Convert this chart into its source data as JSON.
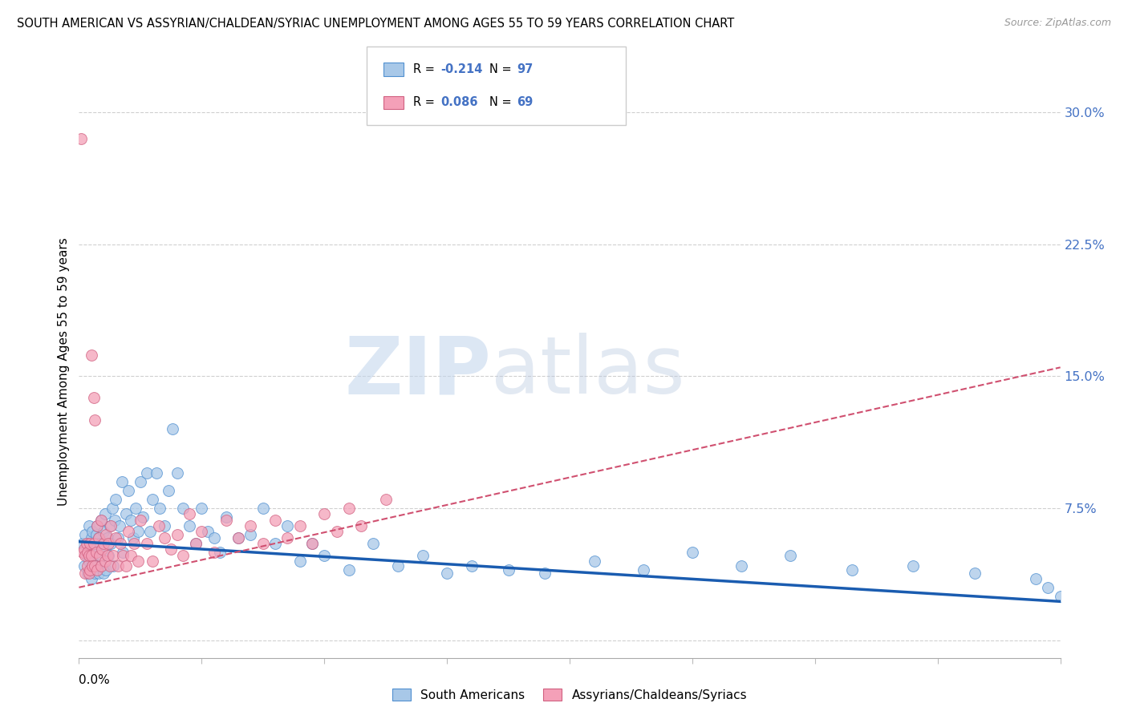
{
  "title": "SOUTH AMERICAN VS ASSYRIAN/CHALDEAN/SYRIAC UNEMPLOYMENT AMONG AGES 55 TO 59 YEARS CORRELATION CHART",
  "source": "Source: ZipAtlas.com",
  "ylabel": "Unemployment Among Ages 55 to 59 years",
  "yticks": [
    0.0,
    0.075,
    0.15,
    0.225,
    0.3
  ],
  "ytick_labels": [
    "",
    "7.5%",
    "15.0%",
    "22.5%",
    "30.0%"
  ],
  "xlim": [
    0.0,
    0.8
  ],
  "ylim": [
    -0.01,
    0.315
  ],
  "blue_R": -0.214,
  "blue_N": 97,
  "pink_R": 0.086,
  "pink_N": 69,
  "blue_color": "#a8c8e8",
  "pink_color": "#f4a0b8",
  "blue_edge_color": "#5090d0",
  "pink_edge_color": "#d06080",
  "blue_line_color": "#1a5cb0",
  "pink_line_color": "#d05070",
  "legend_label_blue": "South Americans",
  "legend_label_pink": "Assyrians/Chaldeans/Syriacs",
  "watermark_zip": "ZIP",
  "watermark_atlas": "atlas",
  "blue_line_x0": 0.0,
  "blue_line_y0": 0.056,
  "blue_line_x1": 0.8,
  "blue_line_y1": 0.022,
  "pink_line_x0": 0.0,
  "pink_line_y0": 0.03,
  "pink_line_x1": 0.8,
  "pink_line_y1": 0.155,
  "blue_scatter_x": [
    0.003,
    0.004,
    0.005,
    0.006,
    0.007,
    0.007,
    0.008,
    0.008,
    0.009,
    0.009,
    0.01,
    0.01,
    0.01,
    0.011,
    0.011,
    0.012,
    0.012,
    0.013,
    0.013,
    0.014,
    0.015,
    0.015,
    0.016,
    0.016,
    0.017,
    0.018,
    0.018,
    0.019,
    0.02,
    0.02,
    0.021,
    0.022,
    0.022,
    0.023,
    0.024,
    0.025,
    0.026,
    0.027,
    0.028,
    0.029,
    0.03,
    0.032,
    0.033,
    0.035,
    0.036,
    0.038,
    0.04,
    0.042,
    0.044,
    0.046,
    0.048,
    0.05,
    0.052,
    0.055,
    0.058,
    0.06,
    0.063,
    0.066,
    0.07,
    0.073,
    0.076,
    0.08,
    0.085,
    0.09,
    0.095,
    0.1,
    0.105,
    0.11,
    0.115,
    0.12,
    0.13,
    0.14,
    0.15,
    0.16,
    0.17,
    0.18,
    0.19,
    0.2,
    0.22,
    0.24,
    0.26,
    0.28,
    0.3,
    0.32,
    0.35,
    0.38,
    0.42,
    0.46,
    0.5,
    0.54,
    0.58,
    0.63,
    0.68,
    0.73,
    0.78,
    0.79,
    0.8
  ],
  "blue_scatter_y": [
    0.055,
    0.042,
    0.06,
    0.048,
    0.055,
    0.038,
    0.065,
    0.045,
    0.052,
    0.04,
    0.058,
    0.048,
    0.035,
    0.062,
    0.044,
    0.05,
    0.04,
    0.055,
    0.038,
    0.06,
    0.065,
    0.042,
    0.058,
    0.038,
    0.055,
    0.042,
    0.068,
    0.048,
    0.062,
    0.038,
    0.072,
    0.05,
    0.04,
    0.058,
    0.048,
    0.065,
    0.055,
    0.075,
    0.042,
    0.068,
    0.08,
    0.058,
    0.065,
    0.09,
    0.05,
    0.072,
    0.085,
    0.068,
    0.058,
    0.075,
    0.062,
    0.09,
    0.07,
    0.095,
    0.062,
    0.08,
    0.095,
    0.075,
    0.065,
    0.085,
    0.12,
    0.095,
    0.075,
    0.065,
    0.055,
    0.075,
    0.062,
    0.058,
    0.05,
    0.07,
    0.058,
    0.06,
    0.075,
    0.055,
    0.065,
    0.045,
    0.055,
    0.048,
    0.04,
    0.055,
    0.042,
    0.048,
    0.038,
    0.042,
    0.04,
    0.038,
    0.045,
    0.04,
    0.05,
    0.042,
    0.048,
    0.04,
    0.042,
    0.038,
    0.035,
    0.03,
    0.025
  ],
  "pink_scatter_x": [
    0.002,
    0.003,
    0.004,
    0.005,
    0.005,
    0.006,
    0.007,
    0.007,
    0.008,
    0.008,
    0.009,
    0.009,
    0.01,
    0.01,
    0.011,
    0.012,
    0.012,
    0.013,
    0.013,
    0.014,
    0.015,
    0.015,
    0.016,
    0.017,
    0.018,
    0.018,
    0.019,
    0.02,
    0.021,
    0.022,
    0.023,
    0.024,
    0.025,
    0.026,
    0.028,
    0.03,
    0.032,
    0.034,
    0.036,
    0.038,
    0.04,
    0.042,
    0.045,
    0.048,
    0.05,
    0.055,
    0.06,
    0.065,
    0.07,
    0.075,
    0.08,
    0.085,
    0.09,
    0.095,
    0.1,
    0.11,
    0.12,
    0.13,
    0.14,
    0.15,
    0.16,
    0.17,
    0.18,
    0.19,
    0.2,
    0.21,
    0.22,
    0.23,
    0.25
  ],
  "pink_scatter_y": [
    0.285,
    0.05,
    0.052,
    0.048,
    0.038,
    0.055,
    0.042,
    0.05,
    0.038,
    0.048,
    0.055,
    0.04,
    0.162,
    0.048,
    0.042,
    0.138,
    0.055,
    0.125,
    0.042,
    0.05,
    0.065,
    0.04,
    0.058,
    0.048,
    0.042,
    0.068,
    0.052,
    0.055,
    0.045,
    0.06,
    0.048,
    0.055,
    0.042,
    0.065,
    0.048,
    0.058,
    0.042,
    0.055,
    0.048,
    0.042,
    0.062,
    0.048,
    0.055,
    0.045,
    0.068,
    0.055,
    0.045,
    0.065,
    0.058,
    0.052,
    0.06,
    0.048,
    0.072,
    0.055,
    0.062,
    0.05,
    0.068,
    0.058,
    0.065,
    0.055,
    0.068,
    0.058,
    0.065,
    0.055,
    0.072,
    0.062,
    0.075,
    0.065,
    0.08
  ]
}
